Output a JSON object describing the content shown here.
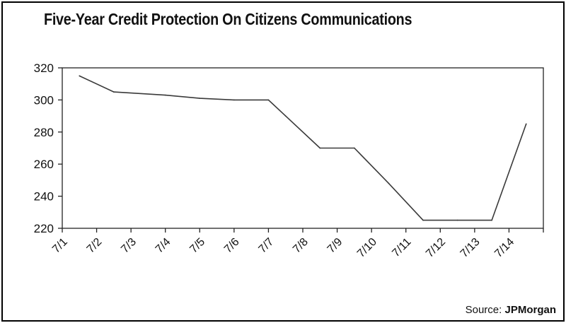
{
  "title": "Five-Year Credit Protection On Citizens Communications",
  "source_label": "Source:",
  "source_name": "JPMorgan",
  "chart_data": {
    "type": "line",
    "categories": [
      "7/1",
      "7/2",
      "7/3",
      "7/4",
      "7/5",
      "7/6",
      "7/7",
      "7/8",
      "7/9",
      "7/10",
      "7/11",
      "7/12",
      "7/13",
      "7/14"
    ],
    "series": [
      {
        "values": [
          315,
          305,
          303,
          301,
          300,
          300,
          290,
          270,
          270,
          248,
          225,
          225,
          225,
          285
        ],
        "x": [
          0.5,
          1.5,
          3.0,
          4.0,
          5.0,
          6.0,
          6.5,
          7.5,
          8.5,
          9.5,
          10.5,
          11.5,
          12.5,
          13.5
        ]
      }
    ],
    "ylim": [
      220,
      320
    ],
    "yticks": [
      220,
      240,
      260,
      280,
      300,
      320
    ],
    "colors": {
      "line": "#3a3a3a",
      "axis": "#222222",
      "tick_text": "#111111"
    },
    "grid": false,
    "legend": "none"
  }
}
